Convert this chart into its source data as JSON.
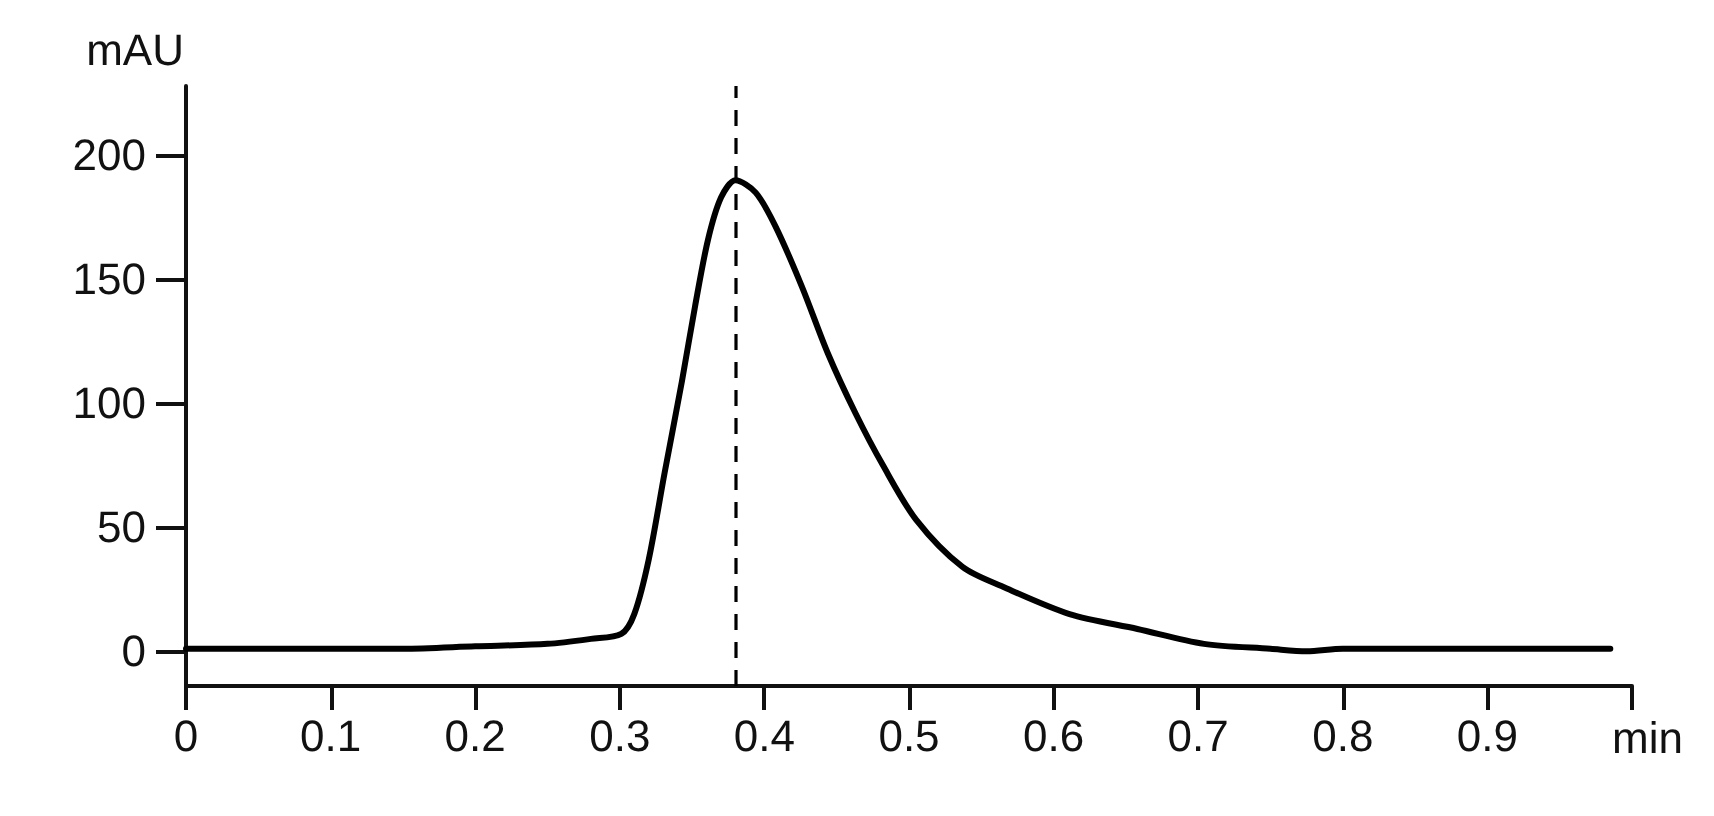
{
  "chart_data": {
    "type": "line",
    "ylabel": "mAU",
    "xlabel": "min",
    "x": [
      0,
      0.05,
      0.1,
      0.15,
      0.2,
      0.25,
      0.28,
      0.301,
      0.31,
      0.32,
      0.331,
      0.343,
      0.352,
      0.361,
      0.37,
      0.38,
      0.394,
      0.408,
      0.426,
      0.444,
      0.463,
      0.482,
      0.505,
      0.537,
      0.565,
      0.611,
      0.658,
      0.704,
      0.75,
      0.775,
      0.8,
      0.9,
      0.985
    ],
    "series": [
      {
        "color": "#000000",
        "values": [
          1,
          1,
          1,
          1,
          2,
          3,
          5,
          7,
          15,
          37,
          72,
          109,
          139,
          166,
          183,
          190,
          185,
          171,
          147,
          120,
          96,
          75,
          53,
          34,
          26,
          15,
          9,
          3,
          1,
          0,
          1,
          1,
          1
        ]
      }
    ],
    "xlim": [
      0,
      1
    ],
    "xticks": [
      0,
      0.1,
      0.2,
      0.3,
      0.4,
      0.5,
      0.6,
      0.7,
      0.8,
      0.9,
      {
        "value": 1,
        "label": null
      }
    ],
    "ylim": [
      -14,
      228
    ],
    "yticks": [
      0,
      50,
      100,
      150,
      200
    ],
    "ref_lines": [
      {
        "axis": "x",
        "value": 0.38,
        "line_style": "dashed",
        "color": "#000000"
      }
    ],
    "grid": false,
    "marker": "none",
    "line_style": "solid"
  }
}
